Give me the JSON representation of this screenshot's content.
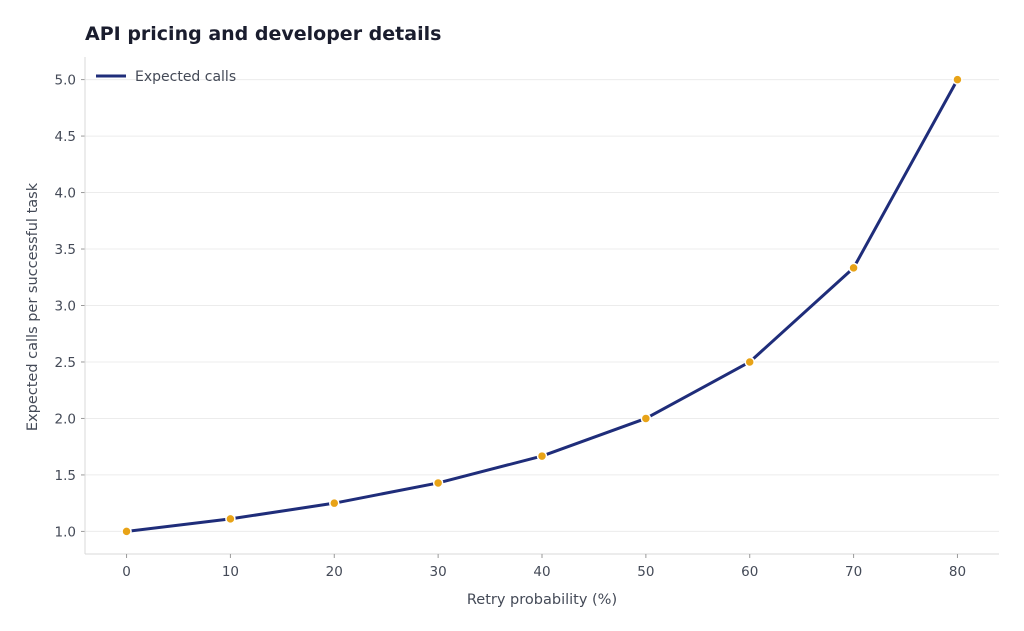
{
  "chart_data": {
    "type": "line",
    "title": "API pricing and developer details",
    "xlabel": "Retry probability (%)",
    "ylabel": "Expected calls per successful task",
    "x": [
      0,
      10,
      20,
      30,
      40,
      50,
      60,
      70,
      80
    ],
    "x_ticks": [
      0,
      10,
      20,
      30,
      40,
      50,
      60,
      70,
      80
    ],
    "x_tick_labels": [
      "0",
      "10",
      "20",
      "30",
      "40",
      "50",
      "60",
      "70",
      "80"
    ],
    "xlim": [
      -4,
      84
    ],
    "y_ticks": [
      1.0,
      1.5,
      2.0,
      2.5,
      3.0,
      3.5,
      4.0,
      4.5,
      5.0
    ],
    "y_tick_labels": [
      "1.0",
      "1.5",
      "2.0",
      "2.5",
      "3.0",
      "3.5",
      "4.0",
      "4.5",
      "5.0"
    ],
    "ylim": [
      0.8,
      5.2
    ],
    "grid": "horizontal",
    "legend_position": "top-left",
    "series": [
      {
        "name": "Expected calls",
        "values": [
          1.0,
          1.111,
          1.25,
          1.429,
          1.667,
          2.0,
          2.5,
          3.333,
          5.0
        ],
        "line_color": "#1f2d7a",
        "marker_color": "#e8a317"
      }
    ]
  }
}
